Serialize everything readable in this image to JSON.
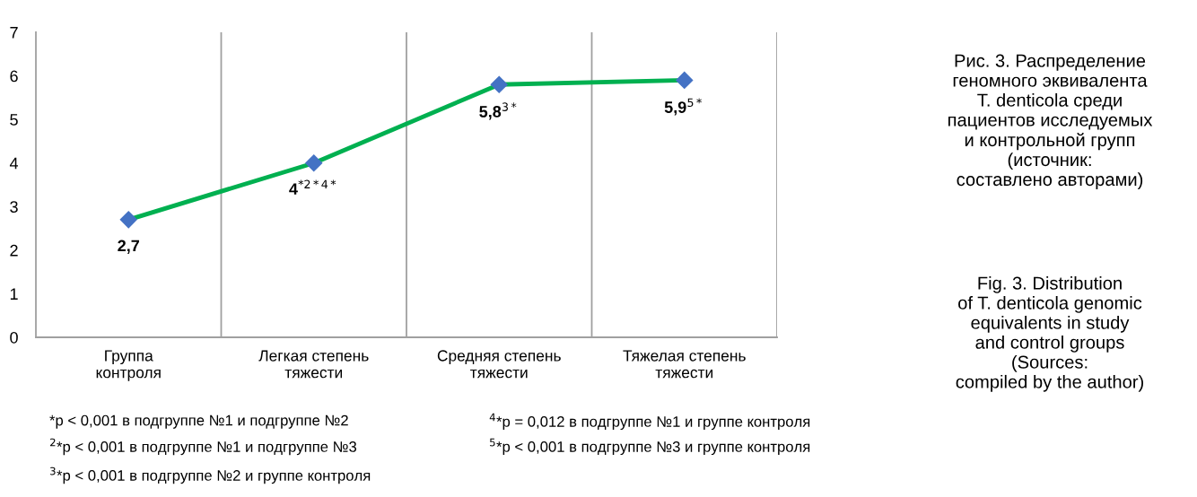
{
  "chart_data": {
    "type": "line",
    "title": "Рис. 3. Распределение\nгеномного эквивалента\nT. denticola среди\nпациентов исследуемых\nи контрольной групп\n(источник:\nсоставлено авторами)",
    "subtitle": "Fig. 3. Distribution\nof T. denticola genomic\nequivalents in study\nand control groups\n(Sources:\ncompiled by the author)",
    "categories": [
      "Группа\nконтроля",
      "Легкая степень\nтяжести",
      "Средняя степень\nтяжести",
      "Тяжелая степень\nтяжести"
    ],
    "series": [
      {
        "color": "#00b050",
        "colors": [
          "#4472c4",
          "#4472c4",
          "#4472c4",
          "#4472c4"
        ],
        "values": [
          2.7,
          4,
          5.8,
          5.9
        ],
        "value_labels": [
          "2,7",
          "4$^{*2*4*}$",
          "5,8$^{3*}$",
          "5,9$^{5*}$"
        ]
      }
    ],
    "ylim": [
      0,
      7
    ],
    "yticks": [
      0,
      1,
      2,
      3,
      4,
      5,
      6,
      7
    ],
    "grid": "x",
    "marker": "diamond",
    "line_style": "solid",
    "annotations": [
      "*p < 0,001 в подгруппе №1 и подгруппе №2",
      "$^{2}$*p < 0,001 в подгруппе №1 и подгруппе №3",
      "$^{3}$*p < 0,001 в подгруппе №2 и группе контроля",
      "$^{4}$*p = 0,012 в подгруппе №1 и группе контроля",
      "$^{5}$*p < 0,001 в подгруппе №3 и группе контроля"
    ]
  }
}
